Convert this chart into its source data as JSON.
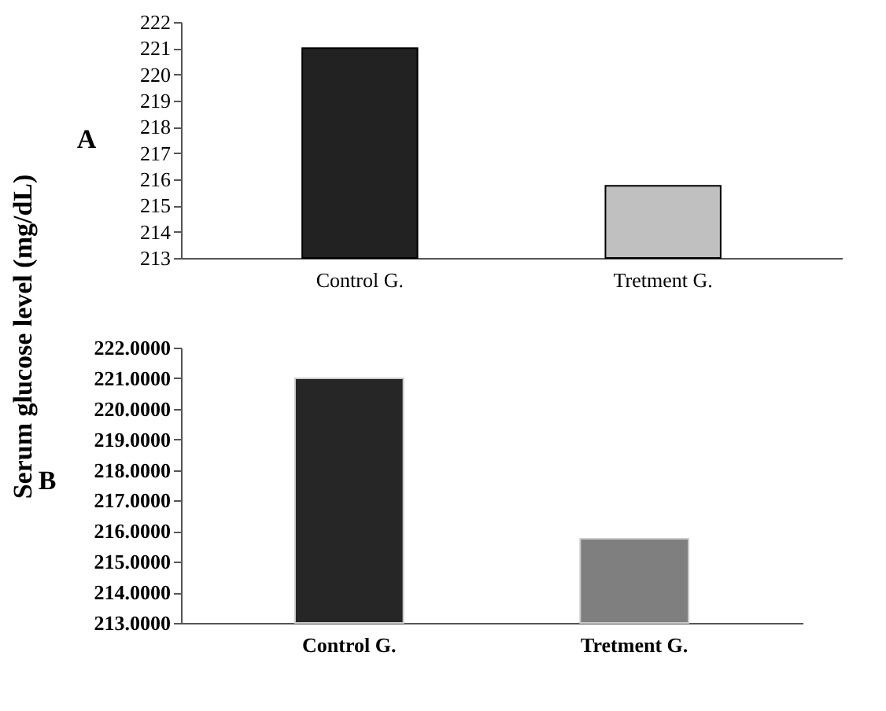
{
  "chart_data": [
    {
      "type": "bar",
      "title": "A",
      "ylabel": "Serum   glucose   level   (mg/dL)",
      "categories": [
        "Control G.",
        "Tretment G."
      ],
      "values": [
        221.0,
        215.75
      ],
      "colors": [
        "#222222",
        "#c0c0c0"
      ],
      "ylim": [
        213,
        222
      ],
      "yticks": [
        213,
        214,
        215,
        216,
        217,
        218,
        219,
        220,
        221,
        222
      ]
    },
    {
      "type": "bar",
      "title": "B",
      "categories": [
        "Control G.",
        "Tretment G."
      ],
      "values": [
        221.0,
        215.75
      ],
      "colors": [
        "#262626",
        "#7f7f7f"
      ],
      "ylim": [
        213,
        222
      ],
      "yticks": [
        {
          "value": 213,
          "label": "213.0000"
        },
        {
          "value": 214,
          "label": "214.0000"
        },
        {
          "value": 215,
          "label": "215.0000"
        },
        {
          "value": 216,
          "label": "216.0000"
        },
        {
          "value": 217,
          "label": "217.0000"
        },
        {
          "value": 218,
          "label": "218.0000"
        },
        {
          "value": 219,
          "label": "219.0000"
        },
        {
          "value": 220,
          "label": "220.0000"
        },
        {
          "value": 221,
          "label": "221.0000"
        },
        {
          "value": 222,
          "label": "222.0000"
        }
      ]
    }
  ]
}
